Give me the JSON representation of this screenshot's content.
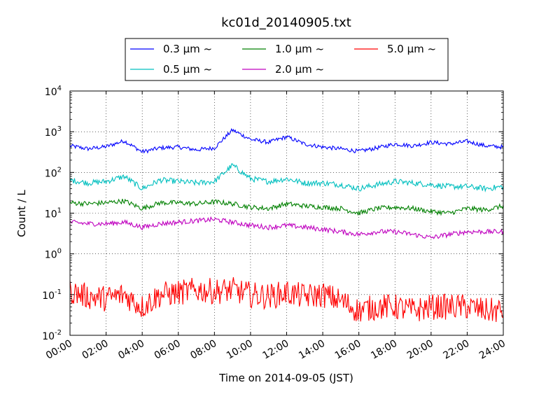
{
  "chart_data": {
    "type": "line",
    "title": "kc01d_20140905.txt",
    "xlabel": "Time on 2014-09-05 (JST)",
    "ylabel": "Count / L",
    "yscale": "log",
    "ylim": [
      0.01,
      10000
    ],
    "xlim_hours": [
      0,
      24
    ],
    "x_tick_labels": [
      "00:00",
      "02:00",
      "04:00",
      "06:00",
      "08:00",
      "10:00",
      "12:00",
      "14:00",
      "16:00",
      "18:00",
      "20:00",
      "22:00",
      "24:00"
    ],
    "y_tick_labels": [
      {
        "base": "10",
        "exp": "-2"
      },
      {
        "base": "10",
        "exp": "-1"
      },
      {
        "base": "10",
        "exp": "0"
      },
      {
        "base": "10",
        "exp": "1"
      },
      {
        "base": "10",
        "exp": "2"
      },
      {
        "base": "10",
        "exp": "3"
      },
      {
        "base": "10",
        "exp": "4"
      }
    ],
    "grid": true,
    "legend_position": "top",
    "x_hours": [
      0,
      1,
      2,
      3,
      4,
      5,
      6,
      7,
      8,
      9,
      10,
      11,
      12,
      13,
      14,
      15,
      16,
      17,
      18,
      19,
      20,
      21,
      22,
      23,
      24
    ],
    "series": [
      {
        "name": "0.3 μm ~",
        "color": "#0000ff",
        "values": [
          450,
          380,
          430,
          600,
          320,
          400,
          420,
          360,
          400,
          1100,
          650,
          550,
          750,
          500,
          420,
          380,
          330,
          400,
          500,
          450,
          550,
          500,
          580,
          450,
          420
        ]
      },
      {
        "name": "0.5 μm ~",
        "color": "#00bfbf",
        "values": [
          65,
          55,
          60,
          80,
          40,
          65,
          60,
          55,
          60,
          150,
          70,
          60,
          70,
          55,
          55,
          50,
          40,
          50,
          60,
          55,
          50,
          45,
          45,
          40,
          45
        ]
      },
      {
        "name": "1.0 μm ~",
        "color": "#008000",
        "values": [
          18,
          17,
          18,
          20,
          13,
          18,
          18,
          17,
          19,
          17,
          14,
          13,
          17,
          15,
          14,
          13,
          10,
          13,
          14,
          13,
          11,
          10,
          13,
          12,
          15
        ]
      },
      {
        "name": "2.0 μm ~",
        "color": "#bf00bf",
        "values": [
          6,
          5.5,
          5.5,
          6,
          4.5,
          5.5,
          6,
          6.5,
          7,
          6,
          5,
          4.5,
          5,
          4.5,
          4,
          3.5,
          3,
          3.5,
          3.5,
          3,
          2.5,
          3,
          3.5,
          3.5,
          3.5
        ]
      },
      {
        "name": "5.0 μm ~",
        "color": "#ff0000",
        "values": [
          0.12,
          0.09,
          0.08,
          0.1,
          0.05,
          0.1,
          0.11,
          0.13,
          0.12,
          0.13,
          0.1,
          0.09,
          0.11,
          0.09,
          0.1,
          0.07,
          0.04,
          0.05,
          0.05,
          0.04,
          0.05,
          0.05,
          0.05,
          0.04,
          0.04
        ]
      }
    ]
  }
}
